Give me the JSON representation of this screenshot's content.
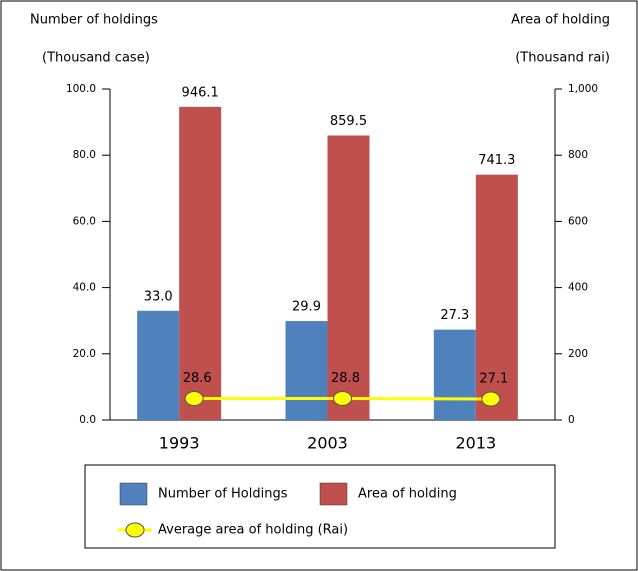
{
  "chart_data": {
    "type": "bar",
    "y_title": "Number of holdings",
    "y_unit": "(Thousand case)",
    "y2_title": "Area of holding",
    "y2_unit": "(Thousand rai)",
    "categories": [
      "1993",
      "2003",
      "2013"
    ],
    "series": [
      {
        "name": "Number of Holdings",
        "color": "#4f81bd",
        "values": [
          33.0,
          29.9,
          27.3
        ],
        "value_labels": [
          "33.0",
          "29.9",
          "27.3"
        ]
      },
      {
        "name": "Area of holding",
        "color": "#c0504d",
        "values": [
          946.1,
          859.5,
          741.3
        ],
        "axis": "y2"
      },
      {
        "name": "Average area of holding (Rai)",
        "type": "line",
        "color": "#ffff00",
        "values": [
          28.6,
          28.8,
          27.1
        ],
        "axis": "y2"
      }
    ],
    "ylim": [
      0,
      100
    ],
    "yticks": [
      {
        "value": 0,
        "label": "0.0"
      },
      {
        "value": 20,
        "label": "20.0"
      },
      {
        "value": 40,
        "label": "40.0"
      },
      {
        "value": 60,
        "label": "60.0"
      },
      {
        "value": 80,
        "label": "80.0"
      },
      {
        "value": 100,
        "label": "100.0"
      }
    ],
    "y2lim": [
      0,
      1000
    ],
    "y2ticks": [
      0,
      200,
      400,
      600,
      800,
      {
        "value": 1000,
        "label": "1,000"
      }
    ],
    "legend": "bottom"
  }
}
